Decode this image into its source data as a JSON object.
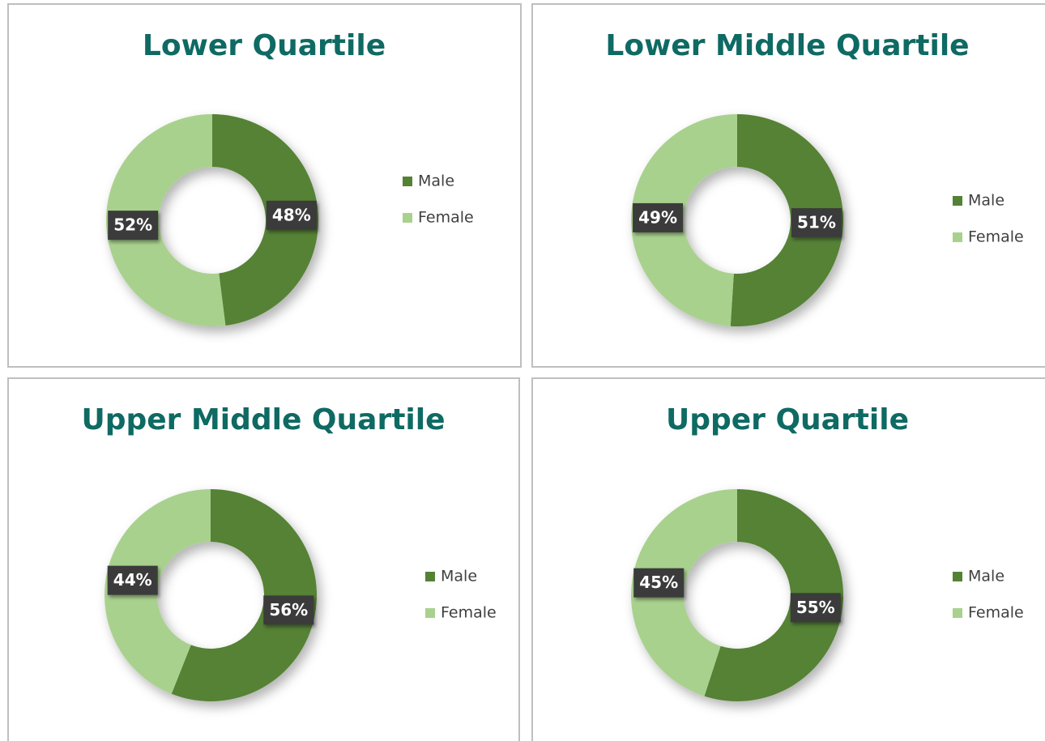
{
  "chart_data": [
    {
      "type": "donut",
      "title": "Lower Quartile",
      "categories": [
        "Male",
        "Female"
      ],
      "values": [
        48,
        52
      ],
      "value_labels": [
        "48%",
        "52%"
      ],
      "colors": [
        "#548235",
        "#a9d18e"
      ]
    },
    {
      "type": "donut",
      "title": "Lower Middle Quartile",
      "categories": [
        "Male",
        "Female"
      ],
      "values": [
        51,
        49
      ],
      "value_labels": [
        "51%",
        "49%"
      ],
      "colors": [
        "#548235",
        "#a9d18e"
      ]
    },
    {
      "type": "donut",
      "title": "Upper Middle Quartile",
      "categories": [
        "Male",
        "Female"
      ],
      "values": [
        56,
        44
      ],
      "value_labels": [
        "56%",
        "44%"
      ],
      "colors": [
        "#548235",
        "#a9d18e"
      ]
    },
    {
      "type": "donut",
      "title": "Upper Quartile",
      "categories": [
        "Male",
        "Female"
      ],
      "values": [
        55,
        45
      ],
      "value_labels": [
        "55%",
        "45%"
      ],
      "colors": [
        "#548235",
        "#a9d18e"
      ]
    }
  ]
}
